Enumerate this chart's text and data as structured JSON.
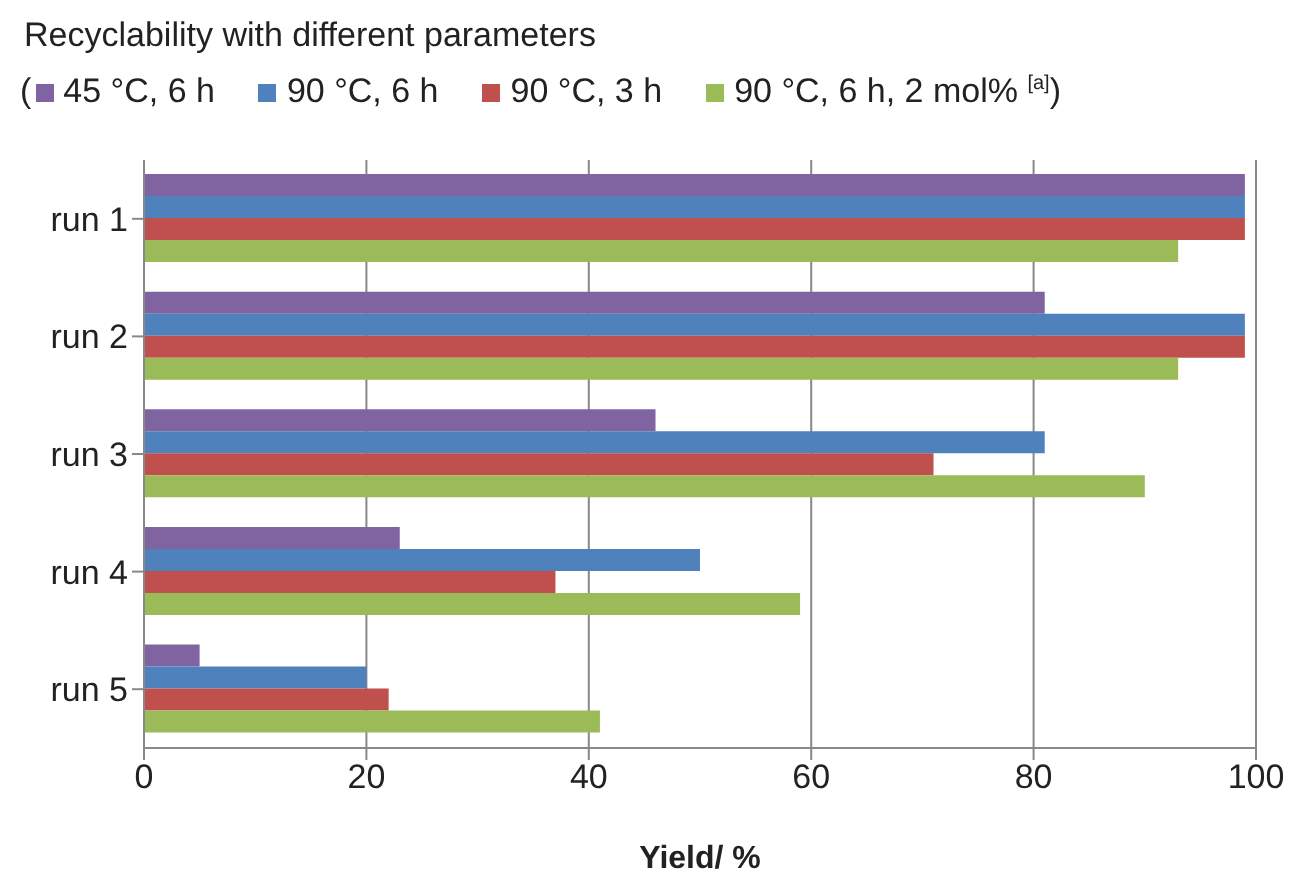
{
  "chart_data": {
    "type": "bar",
    "orientation": "horizontal",
    "title": "Recyclability with different parameters",
    "xlabel": "Yield/ %",
    "categories": [
      "run 1",
      "run 2",
      "run 3",
      "run 4",
      "run 5"
    ],
    "series": [
      {
        "name": "45 °C, 6 h",
        "color": "#8064a2",
        "values": [
          99,
          81,
          46,
          23,
          5
        ]
      },
      {
        "name": "90 °C, 6 h",
        "color": "#4f81bd",
        "values": [
          99,
          99,
          81,
          50,
          20
        ]
      },
      {
        "name": "90 °C, 3 h",
        "color": "#c0504d",
        "values": [
          99,
          99,
          71,
          37,
          22
        ]
      },
      {
        "name": "90 °C, 6 h, 2 mol% $^{[a]}$",
        "color": "#9bbb59",
        "values": [
          93,
          93,
          90,
          59,
          41
        ]
      }
    ],
    "annotations": [
      "(",
      ")"
    ],
    "xlim": [
      0,
      100
    ],
    "xticks": [
      0,
      20,
      40,
      60,
      80,
      100
    ],
    "grid": "x",
    "legend": "top"
  }
}
